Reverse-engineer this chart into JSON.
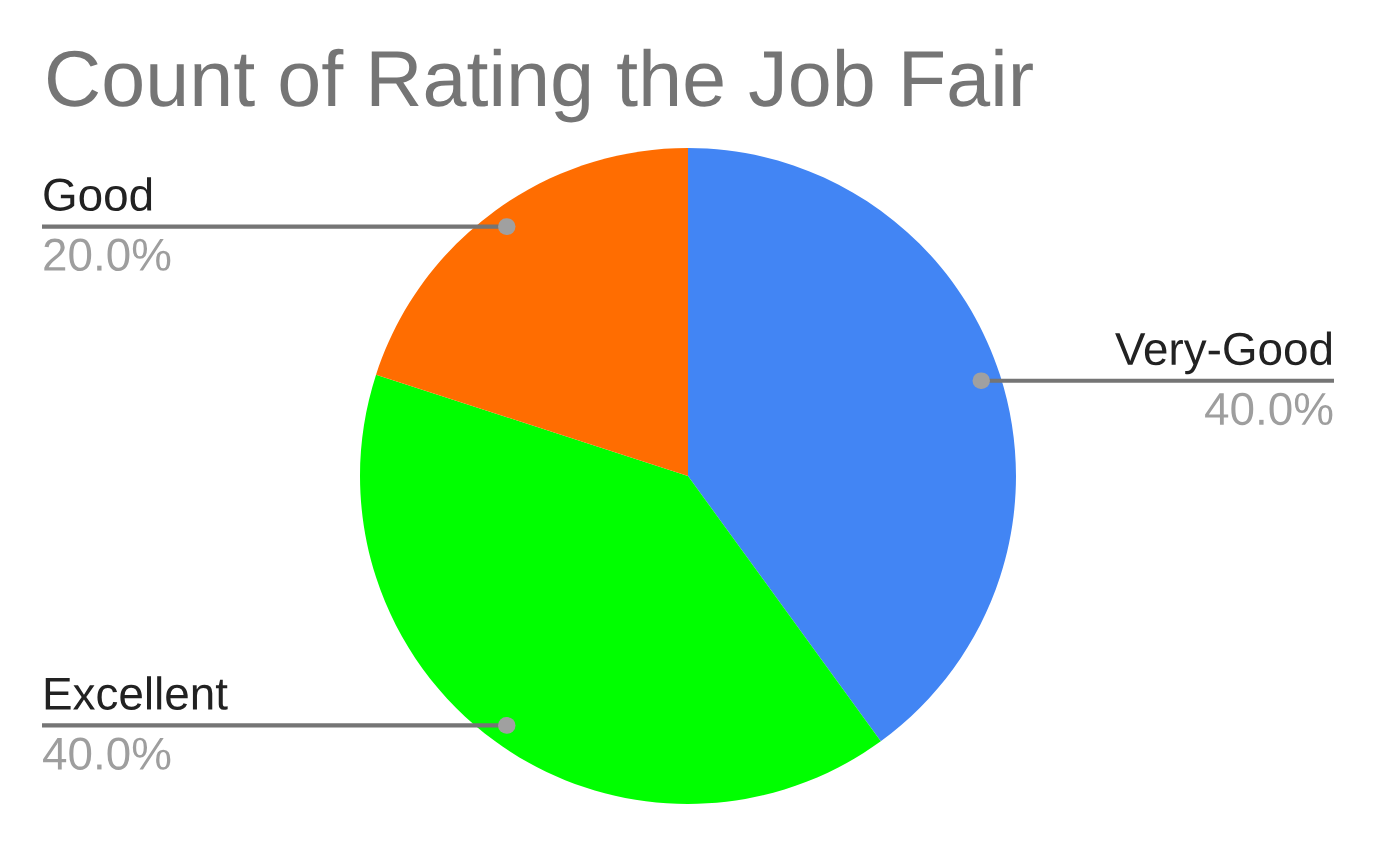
{
  "chart_data": {
    "type": "pie",
    "title": "Count of Rating the Job Fair",
    "categories": [
      "Very-Good",
      "Excellent",
      "Good"
    ],
    "values": [
      40,
      40,
      20
    ],
    "colors": [
      "#4285f4",
      "#00ff00",
      "#ff6d01"
    ],
    "value_labels": [
      "40.0%",
      "40.0%",
      "20.0%"
    ]
  }
}
